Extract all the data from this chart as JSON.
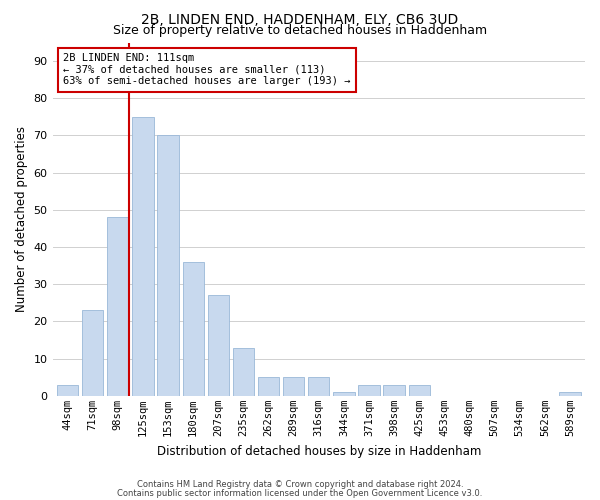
{
  "title1": "2B, LINDEN END, HADDENHAM, ELY, CB6 3UD",
  "title2": "Size of property relative to detached houses in Haddenham",
  "xlabel": "Distribution of detached houses by size in Haddenham",
  "ylabel": "Number of detached properties",
  "categories": [
    "44sqm",
    "71sqm",
    "98sqm",
    "125sqm",
    "153sqm",
    "180sqm",
    "207sqm",
    "235sqm",
    "262sqm",
    "289sqm",
    "316sqm",
    "344sqm",
    "371sqm",
    "398sqm",
    "425sqm",
    "453sqm",
    "480sqm",
    "507sqm",
    "534sqm",
    "562sqm",
    "589sqm"
  ],
  "values": [
    3,
    23,
    48,
    75,
    70,
    36,
    27,
    13,
    5,
    5,
    5,
    1,
    3,
    3,
    3,
    0,
    0,
    0,
    0,
    0,
    1
  ],
  "bar_color": "#c8d9ee",
  "bar_edge_color": "#9ab8d8",
  "highlight_color": "#cc0000",
  "annotation_text": "2B LINDEN END: 111sqm\n← 37% of detached houses are smaller (113)\n63% of semi-detached houses are larger (193) →",
  "annotation_box_color": "#ffffff",
  "annotation_box_edge": "#cc0000",
  "ylim": [
    0,
    95
  ],
  "yticks": [
    0,
    10,
    20,
    30,
    40,
    50,
    60,
    70,
    80,
    90
  ],
  "footer1": "Contains HM Land Registry data © Crown copyright and database right 2024.",
  "footer2": "Contains public sector information licensed under the Open Government Licence v3.0.",
  "background_color": "#ffffff",
  "grid_color": "#d0d0d0"
}
